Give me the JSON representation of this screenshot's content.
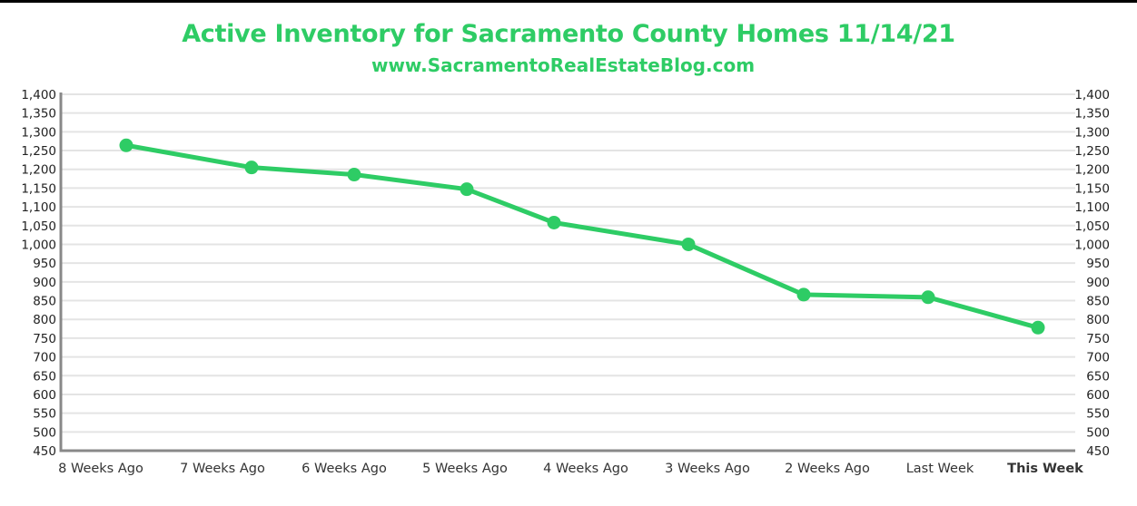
{
  "chart_data": {
    "type": "line",
    "title": "Active Inventory for Sacramento County Homes 11/14/21",
    "subtitle": "www.SacramentoRealEstateBlog.com",
    "xlabel": "",
    "ylabel": "",
    "categories": [
      "8 Weeks Ago",
      "7 Weeks Ago",
      "6 Weeks Ago",
      "5 Weeks Ago",
      "4 Weeks Ago",
      "3 Weeks Ago",
      "2 Weeks Ago",
      "Last Week",
      "This Week"
    ],
    "highlight_category": "This Week",
    "series": [
      {
        "name": "Active Inventory",
        "values": [
          1264,
          1205,
          1186,
          1147,
          1058,
          1000,
          866,
          859,
          778
        ]
      }
    ],
    "ylim": [
      450,
      1400
    ],
    "yticks": [
      "1,400",
      "1,350",
      "1,300",
      "1,250",
      "1,200",
      "1,150",
      "1,100",
      "1,050",
      "1,000",
      "950",
      "900",
      "850",
      "800",
      "750",
      "700",
      "650",
      "600",
      "550",
      "500",
      "450"
    ],
    "ytick_values": [
      1400,
      1350,
      1300,
      1250,
      1200,
      1150,
      1100,
      1050,
      1000,
      950,
      900,
      850,
      800,
      750,
      700,
      650,
      600,
      550,
      500,
      450
    ],
    "dual_y_axis": true,
    "grid": true,
    "legend": "none",
    "colors": {
      "line": "#2ecc65",
      "title": "#2ecc65",
      "highlight": "#2ecc65",
      "grid": "#e4e4e4",
      "axis": "#888888"
    }
  }
}
